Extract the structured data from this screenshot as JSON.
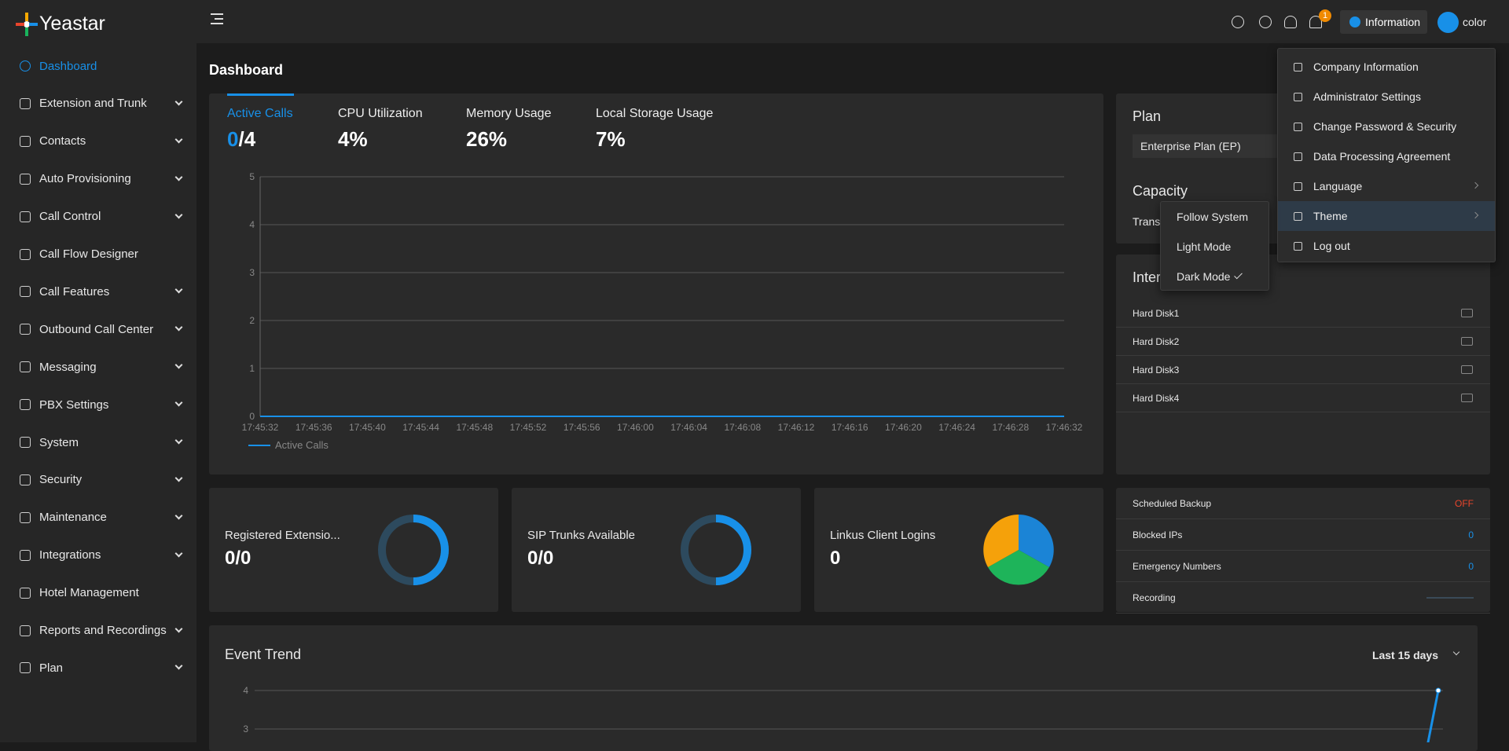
{
  "brand": "Yeastar",
  "top_bar": {
    "notification_count": "1",
    "info_button": "Information",
    "user": "color"
  },
  "sidebar": [
    {
      "label": "Dashboard",
      "active": true,
      "expandable": false
    },
    {
      "label": "Extension and Trunk",
      "active": false,
      "expandable": true
    },
    {
      "label": "Contacts",
      "active": false,
      "expandable": true
    },
    {
      "label": "Auto Provisioning",
      "active": false,
      "expandable": true
    },
    {
      "label": "Call Control",
      "active": false,
      "expandable": true
    },
    {
      "label": "Call Flow Designer",
      "active": false,
      "expandable": false
    },
    {
      "label": "Call Features",
      "active": false,
      "expandable": true
    },
    {
      "label": "Outbound Call Center",
      "active": false,
      "expandable": true
    },
    {
      "label": "Messaging",
      "active": false,
      "expandable": true
    },
    {
      "label": "PBX Settings",
      "active": false,
      "expandable": true
    },
    {
      "label": "System",
      "active": false,
      "expandable": true
    },
    {
      "label": "Security",
      "active": false,
      "expandable": true
    },
    {
      "label": "Maintenance",
      "active": false,
      "expandable": true
    },
    {
      "label": "Integrations",
      "active": false,
      "expandable": true
    },
    {
      "label": "Hotel Management",
      "active": false,
      "expandable": false
    },
    {
      "label": "Reports and Recordings",
      "active": false,
      "expandable": true
    },
    {
      "label": "Plan",
      "active": false,
      "expandable": true
    }
  ],
  "page_title": "Dashboard",
  "stats": [
    {
      "label": "Active Calls",
      "value": "0",
      "total": "/4",
      "active": true
    },
    {
      "label": "CPU Utilization",
      "value": "4%",
      "active": false
    },
    {
      "label": "Memory Usage",
      "value": "26%",
      "active": false
    },
    {
      "label": "Local Storage Usage",
      "value": "7%",
      "active": false
    }
  ],
  "chart_data": [
    {
      "type": "line",
      "x": [
        "17:45:32",
        "17:45:36",
        "17:45:40",
        "17:45:44",
        "17:45:48",
        "17:45:52",
        "17:45:56",
        "17:46:00",
        "17:46:04",
        "17:46:08",
        "17:46:12",
        "17:46:16",
        "17:46:20",
        "17:46:24",
        "17:46:28",
        "17:46:32"
      ],
      "series": [
        {
          "name": "Active Calls",
          "color": "#1890e8",
          "values": [
            0,
            0,
            0,
            0,
            0,
            0,
            0,
            0,
            0,
            0,
            0,
            0,
            0,
            0,
            0,
            0
          ]
        }
      ],
      "ylim": [
        0,
        5
      ],
      "yticks": [
        0,
        1,
        2,
        3,
        4,
        5
      ],
      "grid": true
    },
    {
      "type": "line",
      "title": "Event Trend",
      "range": "Last 15 days",
      "series": [
        {
          "color": "#1890e8",
          "values": [
            4
          ]
        }
      ],
      "ylim": [
        3,
        4
      ],
      "yticks": [
        3,
        4
      ],
      "grid": true
    }
  ],
  "plan": {
    "title": "Plan",
    "plan_name": "Enterprise Plan (EP)",
    "capacity_title": "Capacity",
    "capacity_text": "Trans"
  },
  "storage": {
    "title": "Inter",
    "disks": [
      "Hard Disk1",
      "Hard Disk2",
      "Hard Disk3",
      "Hard Disk4"
    ]
  },
  "summary_cards": [
    {
      "label": "Registered Extensio...",
      "value": "0/0"
    },
    {
      "label": "SIP Trunks Available",
      "value": "0/0"
    },
    {
      "label": "Linkus Client Logins",
      "value": "0"
    }
  ],
  "status_list": [
    {
      "label": "Scheduled Backup",
      "value": "OFF",
      "color": "#e8452c"
    },
    {
      "label": "Blocked IPs",
      "value": "0",
      "color": "#1890e8"
    },
    {
      "label": "Emergency Numbers",
      "value": "0",
      "color": "#1890e8"
    },
    {
      "label": "Recording"
    }
  ],
  "user_menu": [
    {
      "label": "Company Information",
      "submenu": false,
      "active": false
    },
    {
      "label": "Administrator Settings",
      "submenu": false,
      "active": false
    },
    {
      "label": "Change Password & Security",
      "submenu": false,
      "active": false
    },
    {
      "label": "Data Processing Agreement",
      "submenu": false,
      "active": false
    },
    {
      "label": "Language",
      "submenu": true,
      "active": false
    },
    {
      "label": "Theme",
      "submenu": true,
      "active": true
    },
    {
      "label": "Log out",
      "submenu": false,
      "active": false
    }
  ],
  "theme_menu": {
    "options": [
      "Follow System",
      "Light Mode",
      "Dark Mode"
    ],
    "selected": 2
  }
}
